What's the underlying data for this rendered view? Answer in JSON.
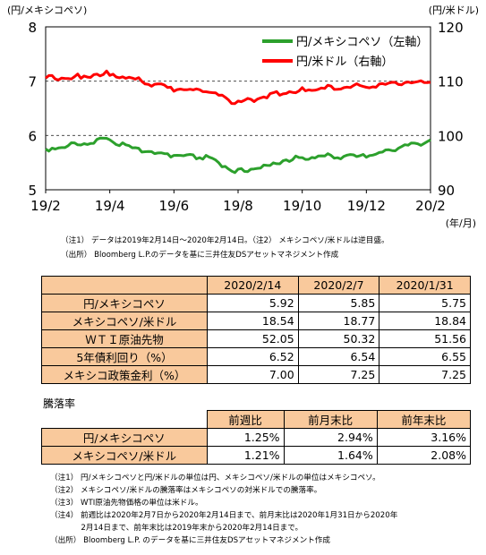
{
  "chart_data": {
    "type": "line",
    "left_axis": {
      "unit": "(円/メキシコペソ)",
      "ticks": [
        "8",
        "7",
        "6",
        "5"
      ],
      "range": [
        5,
        8
      ]
    },
    "right_axis": {
      "unit": "(円/米ドル)",
      "ticks": [
        "120",
        "110",
        "100",
        "90"
      ],
      "range": [
        90,
        120
      ]
    },
    "x_ticks": [
      "19/2",
      "19/4",
      "19/6",
      "19/8",
      "19/10",
      "19/12",
      "20/2"
    ],
    "x_unit": "(年/月)",
    "grid": "dashed",
    "legend": "top-right",
    "series": [
      {
        "name": "円/メキシコペソ（左軸）",
        "axis": "left",
        "color": "#2ca02c",
        "x": [
          "19/2",
          "19/3",
          "19/4",
          "19/5",
          "19/6",
          "19/7",
          "19/8",
          "19/9",
          "19/10",
          "19/11",
          "19/12",
          "20/1",
          "20/2"
        ],
        "values": [
          5.75,
          5.85,
          5.93,
          5.7,
          5.6,
          5.6,
          5.33,
          5.5,
          5.6,
          5.62,
          5.6,
          5.75,
          5.92
        ]
      },
      {
        "name": "円/米ドル（右軸）",
        "axis": "right",
        "color": "#ff0000",
        "x": [
          "19/2",
          "19/3",
          "19/4",
          "19/5",
          "19/6",
          "19/7",
          "19/8",
          "19/9",
          "19/10",
          "19/11",
          "19/12",
          "20/1",
          "20/2"
        ],
        "values": [
          110.5,
          111.0,
          111.5,
          110.0,
          108.5,
          108.0,
          106.0,
          107.5,
          108.5,
          109.0,
          109.0,
          109.5,
          109.8
        ]
      }
    ]
  },
  "notes_top": [
    "（注1） データは2019年2月14日～2020年2月14日。（注2） メキシコペソ/米ドルは逆目盛。",
    "（出所） Bloomberg L.P.のデータを基に三井住友DSアセットマネジメント作成"
  ],
  "table1": {
    "headers": [
      "2020/2/14",
      "2020/2/7",
      "2020/1/31"
    ],
    "rows": [
      {
        "label": "円/メキシコペソ",
        "values": [
          "5.92",
          "5.85",
          "5.75"
        ]
      },
      {
        "label": "メキシコペソ/米ドル",
        "values": [
          "18.54",
          "18.77",
          "18.84"
        ]
      },
      {
        "label": "ＷＴＩ原油先物",
        "values": [
          "52.05",
          "50.32",
          "51.56"
        ]
      },
      {
        "label": "5年債利回り（%）",
        "values": [
          "6.52",
          "6.54",
          "6.55"
        ]
      },
      {
        "label": "メキシコ政策金利（%）",
        "values": [
          "7.00",
          "7.25",
          "7.25"
        ]
      }
    ]
  },
  "table2": {
    "caption": "騰落率",
    "headers": [
      "前週比",
      "前月末比",
      "前年末比"
    ],
    "rows": [
      {
        "label": "円/メキシコペソ",
        "values": [
          "1.25%",
          "2.94%",
          "3.16%"
        ]
      },
      {
        "label": "メキシコペソ/米ドル",
        "values": [
          "1.21%",
          "1.64%",
          "2.08%"
        ]
      }
    ]
  },
  "notes_bottom": [
    "（注1） 円/メキシコペソと円/米ドルの単位は円、メキシコペソ/米ドルの単位はメキシコペソ。",
    "（注2） メキシコペソ/米ドルの騰落率はメキシコペソの対米ドルでの騰落率。",
    "（注3） WTI原油先物価格の単位は米ドル。",
    "（注4） 前週比は2020年2月7日から2020年2月14日まで、前月末比は2020年1月31日から2020年",
    "　　　　2月14日まで、前年末比は2019年末から2020年2月14日まで。",
    "（出所） Bloomberg L.P. のデータを基に三井住友DSアセットマネジメント作成"
  ]
}
